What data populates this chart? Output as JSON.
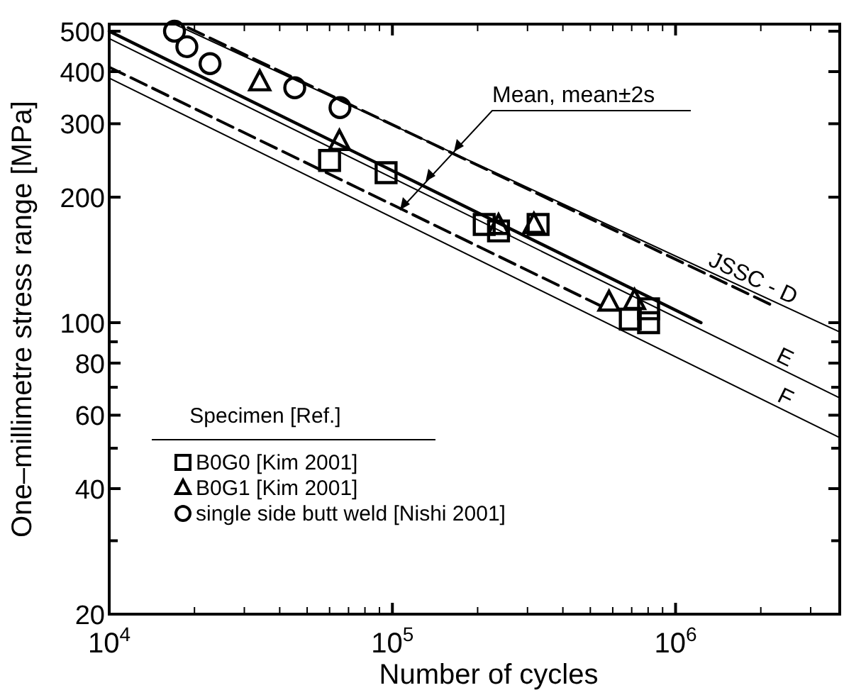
{
  "chart_data": {
    "type": "scatter",
    "xlabel": "Number of cycles",
    "ylabel": "One–millimetre stress range [MPa]",
    "legend_title": "Specimen [Ref.]",
    "legend": "bottom left",
    "log": "xy",
    "grid": false,
    "xlim": [
      10000,
      3800000
    ],
    "ylim": [
      20,
      520
    ],
    "xticks": [
      {
        "value": 10000,
        "label": "10$^{4}$"
      },
      {
        "value": 20000,
        "label": null
      },
      {
        "value": 30000,
        "label": null
      },
      {
        "value": 40000,
        "label": null
      },
      {
        "value": 50000,
        "label": null
      },
      {
        "value": 60000,
        "label": null
      },
      {
        "value": 70000,
        "label": null
      },
      {
        "value": 80000,
        "label": null
      },
      {
        "value": 90000,
        "label": null
      },
      {
        "value": 100000,
        "label": "10$^{5}$"
      },
      {
        "value": 200000,
        "label": null
      },
      {
        "value": 300000,
        "label": null
      },
      {
        "value": 400000,
        "label": null
      },
      {
        "value": 500000,
        "label": null
      },
      {
        "value": 600000,
        "label": null
      },
      {
        "value": 700000,
        "label": null
      },
      {
        "value": 800000,
        "label": null
      },
      {
        "value": 900000,
        "label": null
      },
      {
        "value": 1000000,
        "label": "10$^{6}$"
      },
      {
        "value": 2000000,
        "label": null
      },
      {
        "value": 3000000,
        "label": null
      }
    ],
    "yticks": [
      20,
      {
        "value": 30,
        "label": null
      },
      40,
      {
        "value": 50,
        "label": null
      },
      60,
      {
        "value": 70,
        "label": null
      },
      80,
      {
        "value": 90,
        "label": null
      },
      100,
      200,
      300,
      400,
      500
    ],
    "annotations": [
      "Mean, mean±2s"
    ],
    "series": [
      {
        "type": "line",
        "color": "#000000",
        "line_style": "solid",
        "x": [
          10000,
          1230000
        ],
        "values": [
          500,
          100
        ]
      },
      {
        "type": "line",
        "color": "#000000",
        "line_style": "dashed",
        "x": [
          19000,
          2200000
        ],
        "values": [
          510,
          110
        ]
      },
      {
        "type": "line",
        "color": "#000000",
        "line_style": "dashed",
        "x": [
          10000,
          540000
        ],
        "values": [
          410,
          110
        ]
      },
      {
        "type": "line",
        "name": "JSSC - D",
        "color": "#000000",
        "line_style": "solid",
        "x": [
          17000,
          3800000
        ],
        "values": [
          520,
          95
        ]
      },
      {
        "type": "line",
        "name": "E",
        "color": "#000000",
        "line_style": "solid",
        "x": [
          10000,
          3800000
        ],
        "values": [
          480,
          66
        ]
      },
      {
        "type": "line",
        "name": "F",
        "color": "#000000",
        "line_style": "solid",
        "x": [
          10000,
          3800000
        ],
        "values": [
          386,
          53
        ]
      },
      {
        "name": "B0G0 [Kim 2001]",
        "color": "#000000",
        "marker": "square",
        "x": [
          60000,
          95000,
          211000,
          237000,
          327000,
          692000,
          803000,
          803000
        ],
        "values": [
          245,
          229,
          172,
          166,
          172,
          102,
          100,
          108
        ]
      },
      {
        "name": "B0G1 [Kim 2001]",
        "color": "#000000",
        "marker": "triangle",
        "x": [
          34000,
          65000,
          237000,
          316000,
          582000,
          716000
        ],
        "values": [
          378,
          272,
          171,
          172,
          112,
          113
        ]
      },
      {
        "name": "single side butt weld [Nishi 2001]",
        "color": "#000000",
        "marker": "circle",
        "x": [
          17000,
          18800,
          22700,
          45200,
          65300
        ],
        "values": [
          500,
          459,
          418,
          366,
          328
        ]
      }
    ]
  }
}
